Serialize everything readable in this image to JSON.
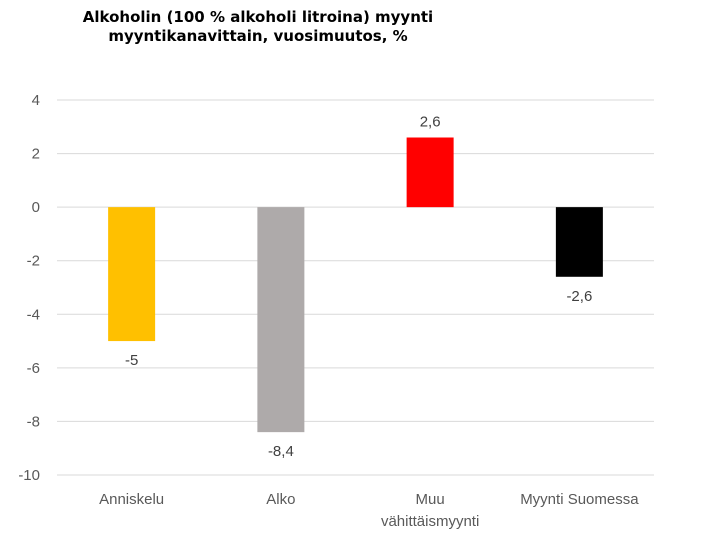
{
  "chart_data": {
    "type": "bar",
    "title_lines": [
      "Alkoholin (100 % alkoholi litroina) myynti",
      "myyntikanavittain, vuosimuutos, %"
    ],
    "categories": [
      [
        "Anniskelu"
      ],
      [
        "Alko"
      ],
      [
        "Muu",
        "vähittäismyynti"
      ],
      [
        "Myynti Suomessa"
      ]
    ],
    "values": [
      -5,
      -8.4,
      2.6,
      -2.6
    ],
    "data_labels": [
      "-5",
      "-8,4",
      "2,6",
      "-2,6"
    ],
    "colors": [
      "#FFC000",
      "#AEAAAA",
      "#FF0000",
      "#000000"
    ],
    "ylim": [
      -10,
      4
    ],
    "yticks": [
      4,
      2,
      0,
      -2,
      -4,
      -6,
      -8,
      -10
    ],
    "grid": true,
    "legend": "none"
  }
}
